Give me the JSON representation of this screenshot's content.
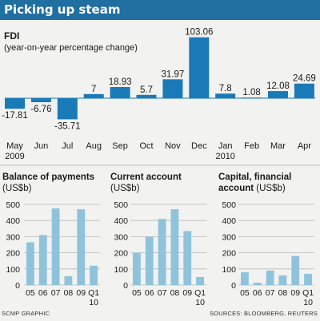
{
  "header": {
    "title": "Picking up steam"
  },
  "colors": {
    "banner": "#1f6fa0",
    "fdi_bar": "#1a7ab8",
    "small_bar": "#8fc3dc",
    "grid": "#b8b8b8",
    "background": "#f2f2f0"
  },
  "footer": {
    "left": "SCMP GRAPHIC",
    "right": "SOURCES: BLOOMBERG, REUTERS"
  },
  "chart_data": [
    {
      "type": "bar",
      "title": "FDI",
      "subtitle": "(year-on-year percentage change)",
      "categories": [
        "May",
        "Jun",
        "Jul",
        "Aug",
        "Sep",
        "Oct",
        "Nov",
        "Dec",
        "Jan",
        "Feb",
        "Mar",
        "Apr"
      ],
      "years": [
        "2009",
        "",
        "",
        "",
        "",
        "",
        "",
        "",
        "2010",
        "",
        "",
        ""
      ],
      "values": [
        -17.81,
        -6.76,
        -35.71,
        7,
        18.93,
        5.7,
        31.97,
        103.06,
        7.8,
        1.08,
        12.08,
        24.69
      ],
      "labels": [
        "-17.81",
        "-6.76",
        "-35.71",
        "7",
        "18.93",
        "5.7",
        "31.97",
        "103.06",
        "7.8",
        "1.08",
        "12.08",
        "24.69"
      ],
      "grid": false
    },
    {
      "type": "bar",
      "title": "Balance of payments",
      "ylabel": "(US$b)",
      "categories": [
        "05",
        "06",
        "07",
        "08",
        "09",
        "Q1\n10"
      ],
      "values": [
        265,
        310,
        475,
        55,
        470,
        120
      ],
      "yticks": [
        0,
        100,
        200,
        300,
        400,
        500
      ],
      "ylim": [
        0,
        500
      ],
      "grid": true
    },
    {
      "type": "bar",
      "title": "Current account",
      "ylabel": "(US$b)",
      "categories": [
        "05",
        "06",
        "07",
        "08",
        "09",
        "Q1\n10"
      ],
      "values": [
        200,
        300,
        410,
        470,
        335,
        50
      ],
      "yticks": [
        0,
        100,
        200,
        300,
        400,
        500
      ],
      "ylim": [
        0,
        500
      ],
      "grid": true
    },
    {
      "type": "bar",
      "title": "Capital, financial account",
      "ylabel": "(US$b)",
      "categories": [
        "05",
        "06",
        "07",
        "08",
        "09",
        "Q1\n10"
      ],
      "values": [
        80,
        15,
        90,
        60,
        180,
        70
      ],
      "yticks": [
        0,
        100,
        200,
        300,
        400,
        500
      ],
      "ylim": [
        0,
        500
      ],
      "grid": true
    }
  ]
}
